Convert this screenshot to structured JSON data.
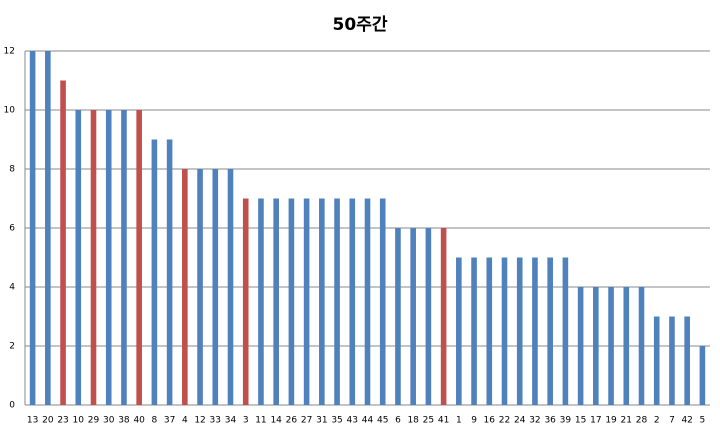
{
  "chart_data": {
    "type": "bar",
    "title": "50주간",
    "categories": [
      "13",
      "20",
      "23",
      "10",
      "29",
      "30",
      "38",
      "40",
      "8",
      "37",
      "4",
      "12",
      "33",
      "34",
      "3",
      "11",
      "14",
      "26",
      "27",
      "31",
      "35",
      "43",
      "44",
      "45",
      "6",
      "18",
      "25",
      "41",
      "1",
      "9",
      "16",
      "22",
      "24",
      "32",
      "36",
      "39",
      "15",
      "17",
      "19",
      "21",
      "28",
      "2",
      "7",
      "42",
      "5"
    ],
    "values": [
      12,
      12,
      11,
      10,
      10,
      10,
      10,
      10,
      9,
      9,
      8,
      8,
      8,
      8,
      7,
      7,
      7,
      7,
      7,
      7,
      7,
      7,
      7,
      7,
      6,
      6,
      6,
      6,
      5,
      5,
      5,
      5,
      5,
      5,
      5,
      5,
      4,
      4,
      4,
      4,
      4,
      3,
      3,
      3,
      2
    ],
    "colors": [
      "#4f81bd",
      "#4f81bd",
      "#c0504d",
      "#4f81bd",
      "#c0504d",
      "#4f81bd",
      "#4f81bd",
      "#c0504d",
      "#4f81bd",
      "#4f81bd",
      "#c0504d",
      "#4f81bd",
      "#4f81bd",
      "#4f81bd",
      "#c0504d",
      "#4f81bd",
      "#4f81bd",
      "#4f81bd",
      "#4f81bd",
      "#4f81bd",
      "#4f81bd",
      "#4f81bd",
      "#4f81bd",
      "#4f81bd",
      "#4f81bd",
      "#4f81bd",
      "#4f81bd",
      "#c0504d",
      "#4f81bd",
      "#4f81bd",
      "#4f81bd",
      "#4f81bd",
      "#4f81bd",
      "#4f81bd",
      "#4f81bd",
      "#4f81bd",
      "#4f81bd",
      "#4f81bd",
      "#4f81bd",
      "#4f81bd",
      "#4f81bd",
      "#4f81bd",
      "#4f81bd",
      "#4f81bd",
      "#4f81bd"
    ],
    "ylim": [
      0,
      12
    ],
    "yticks": [
      0,
      2,
      4,
      6,
      8,
      10,
      12
    ],
    "grid": true
  }
}
